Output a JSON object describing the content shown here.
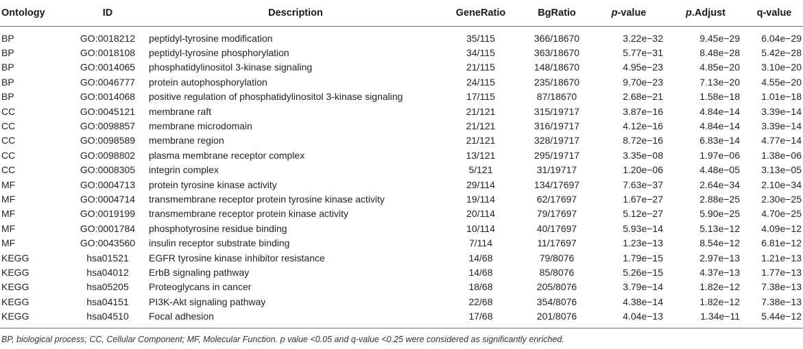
{
  "headers": {
    "ontology": "Ontology",
    "id": "ID",
    "description": "Description",
    "gene_ratio": "GeneRatio",
    "bg_ratio": "BgRatio",
    "p_value_prefix": "p",
    "p_value_suffix": "-value",
    "p_adjust_prefix": "p",
    "p_adjust_suffix": ".Adjust",
    "q_value": "q-value"
  },
  "rows": [
    {
      "ontology": "BP",
      "id": "GO:0018212",
      "description": "peptidyl-tyrosine modification",
      "gene_ratio": "35/115",
      "bg_ratio": "366/18670",
      "p_value": "3.22e−32",
      "p_adjust": "9.45e−29",
      "q_value": "6.04e−29"
    },
    {
      "ontology": "BP",
      "id": "GO:0018108",
      "description": "peptidyl-tyrosine phosphorylation",
      "gene_ratio": "34/115",
      "bg_ratio": "363/18670",
      "p_value": "5.77e−31",
      "p_adjust": "8.48e−28",
      "q_value": "5.42e−28"
    },
    {
      "ontology": "BP",
      "id": "GO:0014065",
      "description": "phosphatidylinositol 3-kinase signaling",
      "gene_ratio": "21/115",
      "bg_ratio": "148/18670",
      "p_value": "4.95e−23",
      "p_adjust": "4.85e−20",
      "q_value": "3.10e−20"
    },
    {
      "ontology": "BP",
      "id": "GO:0046777",
      "description": "protein autophosphorylation",
      "gene_ratio": "24/115",
      "bg_ratio": "235/18670",
      "p_value": "9.70e−23",
      "p_adjust": "7.13e−20",
      "q_value": "4.55e−20"
    },
    {
      "ontology": "BP",
      "id": "GO:0014068",
      "description": "positive regulation of phosphatidylinositol 3-kinase signaling",
      "gene_ratio": "17/115",
      "bg_ratio": "87/18670",
      "p_value": "2.68e−21",
      "p_adjust": "1.58e−18",
      "q_value": "1.01e−18"
    },
    {
      "ontology": "CC",
      "id": "GO:0045121",
      "description": "membrane raft",
      "gene_ratio": "21/121",
      "bg_ratio": "315/19717",
      "p_value": "3.87e−16",
      "p_adjust": "4.84e−14",
      "q_value": "3.39e−14"
    },
    {
      "ontology": "CC",
      "id": "GO:0098857",
      "description": "membrane microdomain",
      "gene_ratio": "21/121",
      "bg_ratio": "316/19717",
      "p_value": "4.12e−16",
      "p_adjust": "4.84e−14",
      "q_value": "3.39e−14"
    },
    {
      "ontology": "CC",
      "id": "GO:0098589",
      "description": "membrane region",
      "gene_ratio": "21/121",
      "bg_ratio": "328/19717",
      "p_value": "8.72e−16",
      "p_adjust": "6.83e−14",
      "q_value": "4.77e−14"
    },
    {
      "ontology": "CC",
      "id": "GO:0098802",
      "description": "plasma membrane receptor complex",
      "gene_ratio": "13/121",
      "bg_ratio": "295/19717",
      "p_value": "3.35e−08",
      "p_adjust": "1.97e−06",
      "q_value": "1.38e−06"
    },
    {
      "ontology": "CC",
      "id": "GO:0008305",
      "description": "integrin complex",
      "gene_ratio": "5/121",
      "bg_ratio": "31/19717",
      "p_value": "1.20e−06",
      "p_adjust": "4.48e−05",
      "q_value": "3.13e−05"
    },
    {
      "ontology": "MF",
      "id": "GO:0004713",
      "description": "protein tyrosine kinase activity",
      "gene_ratio": "29/114",
      "bg_ratio": "134/17697",
      "p_value": "7.63e−37",
      "p_adjust": "2.64e−34",
      "q_value": "2.10e−34"
    },
    {
      "ontology": "MF",
      "id": "GO:0004714",
      "description": "transmembrane receptor protein tyrosine kinase activity",
      "gene_ratio": "19/114",
      "bg_ratio": "62/17697",
      "p_value": "1.67e−27",
      "p_adjust": "2.88e−25",
      "q_value": "2.30e−25"
    },
    {
      "ontology": "MF",
      "id": "GO:0019199",
      "description": "transmembrane receptor protein kinase activity",
      "gene_ratio": "20/114",
      "bg_ratio": "79/17697",
      "p_value": "5.12e−27",
      "p_adjust": "5.90e−25",
      "q_value": "4.70e−25"
    },
    {
      "ontology": "MF",
      "id": "GO:0001784",
      "description": "phosphotyrosine residue binding",
      "gene_ratio": "10/114",
      "bg_ratio": "40/17697",
      "p_value": "5.93e−14",
      "p_adjust": "5.13e−12",
      "q_value": "4.09e−12"
    },
    {
      "ontology": "MF",
      "id": "GO:0043560",
      "description": "insulin receptor substrate binding",
      "gene_ratio": "7/114",
      "bg_ratio": "11/17697",
      "p_value": "1.23e−13",
      "p_adjust": "8.54e−12",
      "q_value": "6.81e−12"
    },
    {
      "ontology": "KEGG",
      "id": "hsa01521",
      "description": "EGFR tyrosine kinase inhibitor resistance",
      "gene_ratio": "14/68",
      "bg_ratio": "79/8076",
      "p_value": "1.79e−15",
      "p_adjust": "2.97e−13",
      "q_value": "1.21e−13"
    },
    {
      "ontology": "KEGG",
      "id": "hsa04012",
      "description": "ErbB signaling pathway",
      "gene_ratio": "14/68",
      "bg_ratio": "85/8076",
      "p_value": "5.26e−15",
      "p_adjust": "4.37e−13",
      "q_value": "1.77e−13"
    },
    {
      "ontology": "KEGG",
      "id": "hsa05205",
      "description": "Proteoglycans in cancer",
      "gene_ratio": "18/68",
      "bg_ratio": "205/8076",
      "p_value": "3.79e−14",
      "p_adjust": "1.82e−12",
      "q_value": "7.38e−13"
    },
    {
      "ontology": "KEGG",
      "id": "hsa04151",
      "description": "PI3K-Akt signaling pathway",
      "gene_ratio": "22/68",
      "bg_ratio": "354/8076",
      "p_value": "4.38e−14",
      "p_adjust": "1.82e−12",
      "q_value": "7.38e−13"
    },
    {
      "ontology": "KEGG",
      "id": "hsa04510",
      "description": "Focal adhesion",
      "gene_ratio": "17/68",
      "bg_ratio": "201/8076",
      "p_value": "4.04e−13",
      "p_adjust": "1.34e−11",
      "q_value": "5.44e−12"
    }
  ],
  "footnote": "BP, biological process; CC, Cellular Component; MF, Molecular Function. p value <0.05 and q-value <0.25 were considered as significantly enriched."
}
